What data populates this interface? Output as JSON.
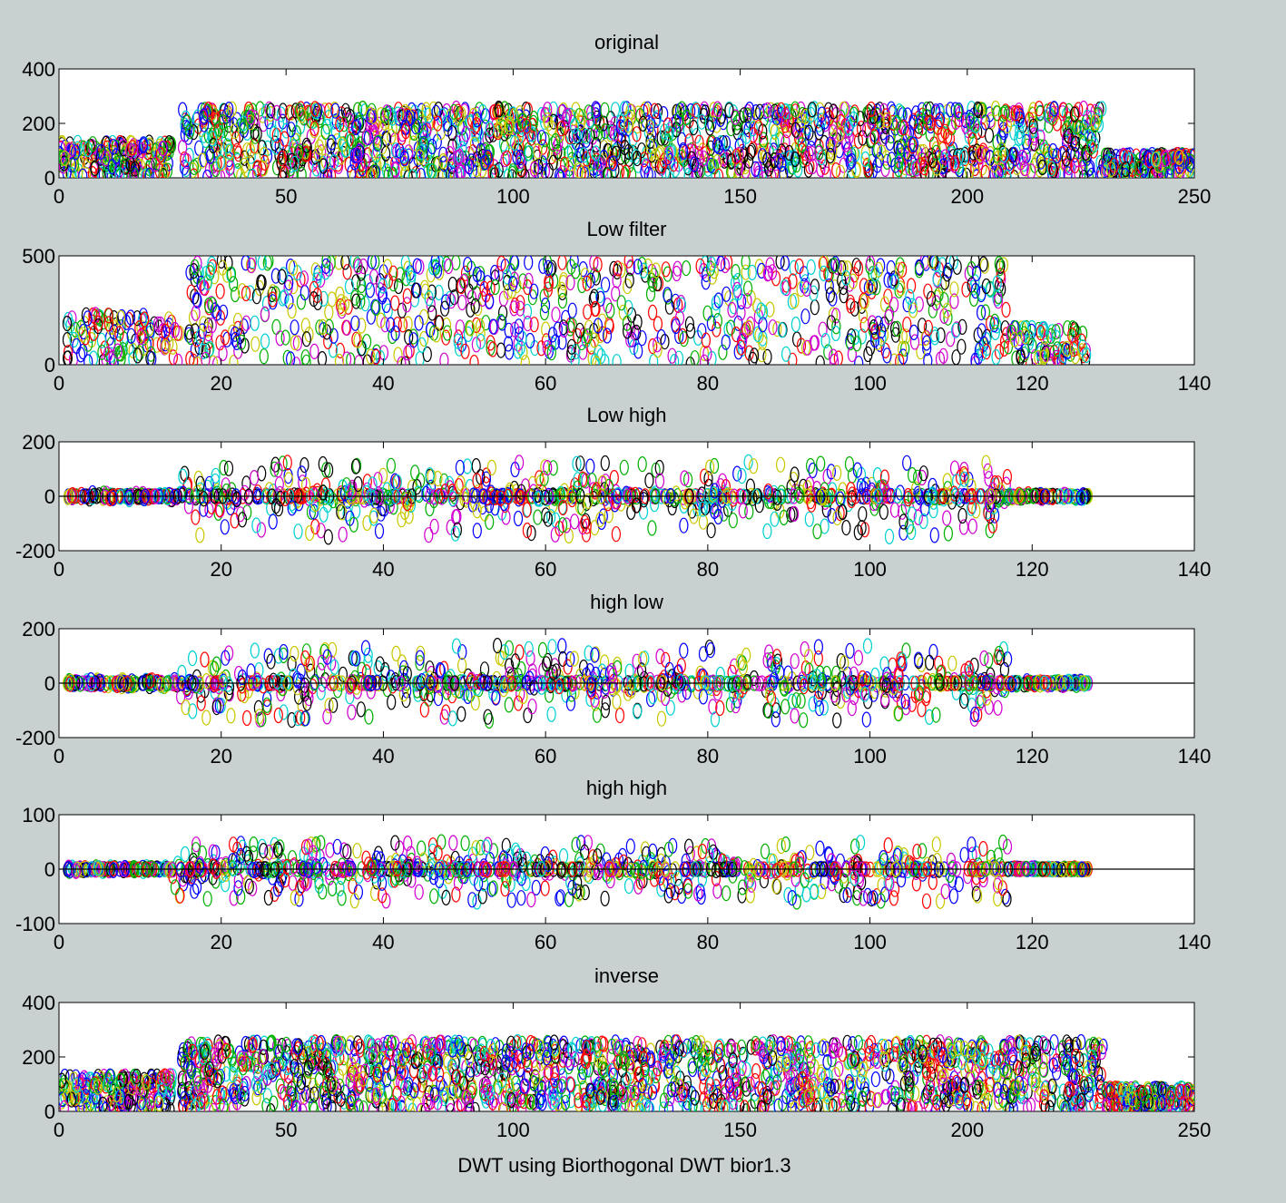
{
  "figure": {
    "background": "#c8d0d0",
    "xlabel": "DWT using Biorthogonal DWT bior1.3",
    "marker": "circle",
    "series_colors": [
      "#0000ff",
      "#00b000",
      "#ff0000",
      "#00d0d0",
      "#d000d0",
      "#c8c800",
      "#000000"
    ]
  },
  "chart_data": [
    {
      "type": "scatter",
      "title": "original",
      "xlim": [
        0,
        250
      ],
      "ylim": [
        0,
        400
      ],
      "xticks": [
        0,
        50,
        100,
        150,
        200,
        250
      ],
      "yticks": [
        0,
        200,
        400
      ],
      "zero_line": false,
      "envelope": [
        {
          "from": 0,
          "to": 25,
          "low": 5,
          "high": 130
        },
        {
          "from": 27,
          "to": 230,
          "low": 0,
          "high": 255
        },
        {
          "from": 230,
          "to": 250,
          "low": 5,
          "high": 85
        }
      ]
    },
    {
      "type": "scatter",
      "title": "Low filter",
      "xlim": [
        0,
        140
      ],
      "ylim": [
        0,
        500
      ],
      "xticks": [
        0,
        20,
        40,
        60,
        80,
        100,
        120,
        140
      ],
      "yticks": [
        0,
        500
      ],
      "zero_line": false,
      "envelope": [
        {
          "from": 1,
          "to": 15,
          "low": 10,
          "high": 230
        },
        {
          "from": 16,
          "to": 117,
          "low": 0,
          "high": 480
        },
        {
          "from": 117,
          "to": 127,
          "low": 10,
          "high": 170
        }
      ]
    },
    {
      "type": "scatter",
      "title": "Low high",
      "xlim": [
        0,
        140
      ],
      "ylim": [
        -200,
        200
      ],
      "xticks": [
        0,
        20,
        40,
        60,
        80,
        100,
        120,
        140
      ],
      "yticks": [
        -200,
        0,
        200
      ],
      "zero_line": true,
      "envelope": [
        {
          "from": 1,
          "to": 15,
          "low": -12,
          "high": 12
        },
        {
          "from": 15,
          "to": 117,
          "low": -150,
          "high": 130
        },
        {
          "from": 117,
          "to": 127,
          "low": -8,
          "high": 8
        }
      ]
    },
    {
      "type": "scatter",
      "title": "high low",
      "xlim": [
        0,
        140
      ],
      "ylim": [
        -200,
        200
      ],
      "xticks": [
        0,
        20,
        40,
        60,
        80,
        100,
        120,
        140
      ],
      "yticks": [
        -200,
        0,
        200
      ],
      "zero_line": true,
      "envelope": [
        {
          "from": 1,
          "to": 15,
          "low": -12,
          "high": 12
        },
        {
          "from": 15,
          "to": 117,
          "low": -140,
          "high": 140
        },
        {
          "from": 117,
          "to": 127,
          "low": -8,
          "high": 8
        }
      ]
    },
    {
      "type": "scatter",
      "title": "high high",
      "xlim": [
        0,
        140
      ],
      "ylim": [
        -100,
        100
      ],
      "xticks": [
        0,
        20,
        40,
        60,
        80,
        100,
        120,
        140
      ],
      "yticks": [
        -100,
        0,
        100
      ],
      "zero_line": true,
      "envelope": [
        {
          "from": 1,
          "to": 14,
          "low": -4,
          "high": 4
        },
        {
          "from": 14,
          "to": 117,
          "low": -60,
          "high": 50
        },
        {
          "from": 117,
          "to": 127,
          "low": -2,
          "high": 2
        }
      ]
    },
    {
      "type": "scatter",
      "title": "inverse",
      "xlim": [
        0,
        250
      ],
      "ylim": [
        0,
        400
      ],
      "xticks": [
        0,
        50,
        100,
        150,
        200,
        250
      ],
      "yticks": [
        0,
        200,
        400
      ],
      "zero_line": false,
      "envelope": [
        {
          "from": 0,
          "to": 25,
          "low": 5,
          "high": 130
        },
        {
          "from": 27,
          "to": 230,
          "low": 0,
          "high": 255
        },
        {
          "from": 230,
          "to": 250,
          "low": 5,
          "high": 85
        }
      ]
    }
  ]
}
